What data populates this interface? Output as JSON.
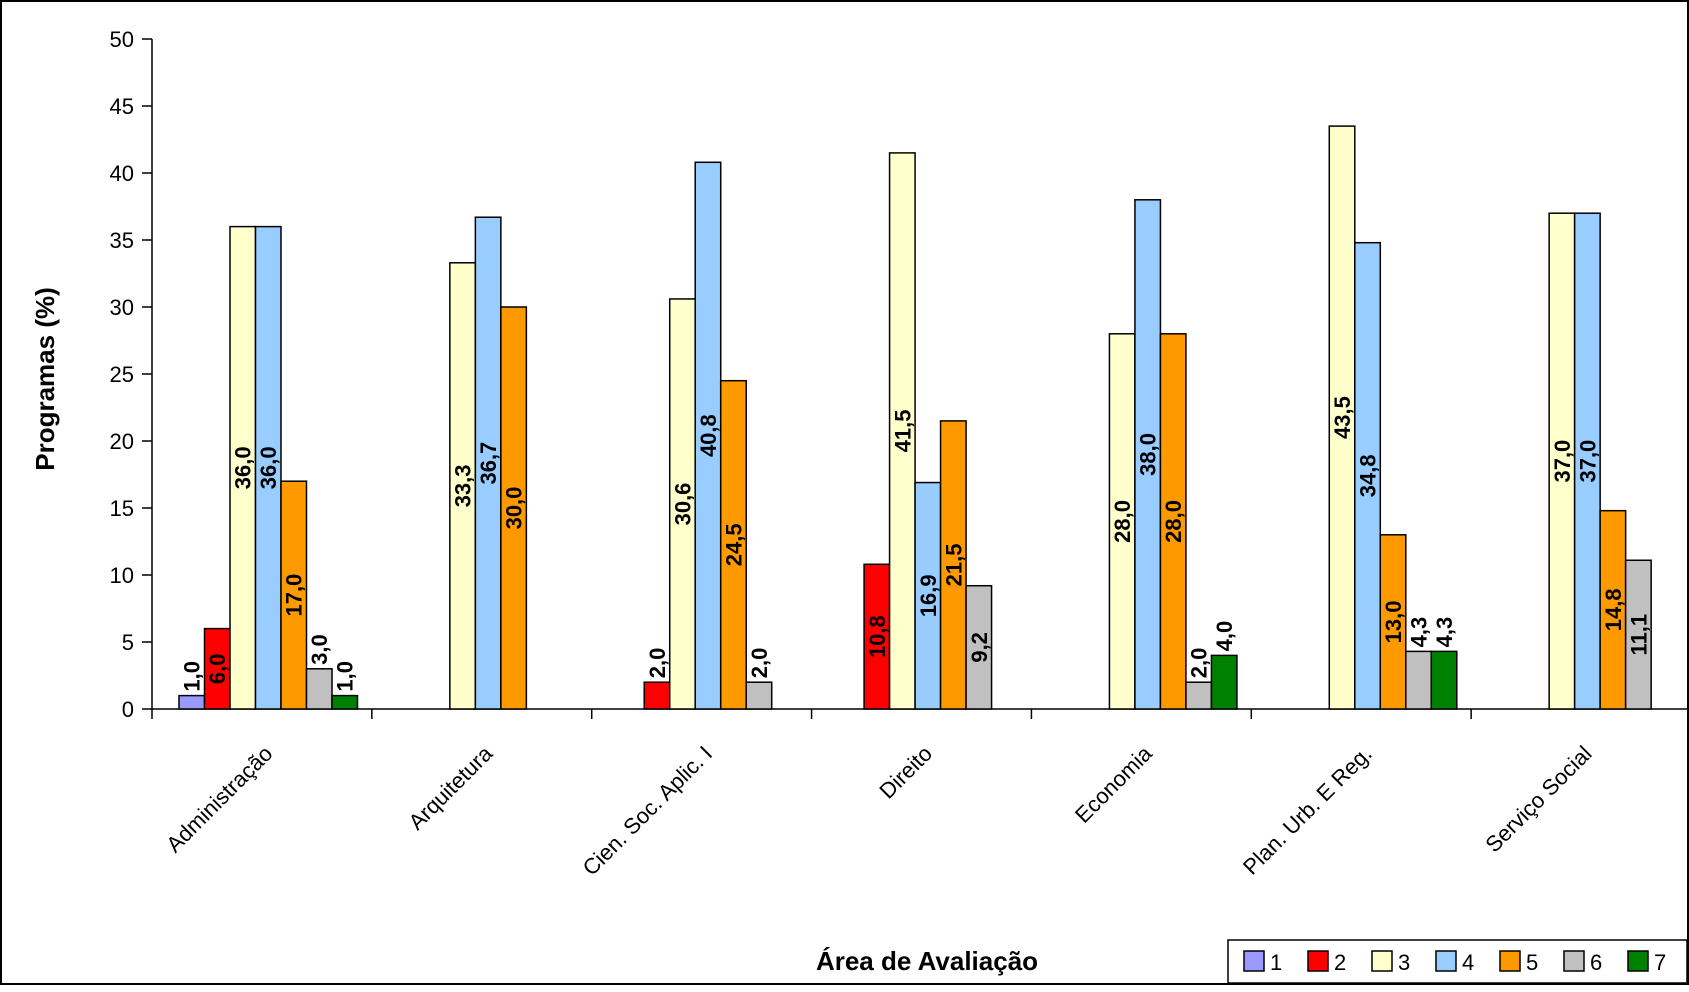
{
  "chart_data": {
    "type": "bar",
    "title": "",
    "xlabel": "Área de Avaliação",
    "ylabel": "Programas (%)",
    "ylim": [
      0,
      50
    ],
    "yticks": [
      0,
      5,
      10,
      15,
      20,
      25,
      30,
      35,
      40,
      45,
      50
    ],
    "grid": false,
    "legend_position": "bottom-right",
    "categories": [
      "Administração",
      "Arquitetura",
      "Cien. Soc. Aplic. I",
      "Direito",
      "Economia",
      "Plan. Urb. E Reg.",
      "Serviço Social"
    ],
    "series": [
      {
        "name": "1",
        "color": "#9999ff",
        "values": [
          1.0,
          null,
          null,
          null,
          null,
          null,
          null
        ],
        "labels": [
          "1,0",
          "",
          "",
          "",
          "",
          "",
          ""
        ]
      },
      {
        "name": "2",
        "color": "#ff0000",
        "values": [
          6.0,
          null,
          2.0,
          10.8,
          null,
          null,
          null
        ],
        "labels": [
          "6,0",
          "",
          "2,0",
          "10,8",
          "",
          "",
          ""
        ]
      },
      {
        "name": "3",
        "color": "#ffffcc",
        "values": [
          36.0,
          33.3,
          30.6,
          41.5,
          28.0,
          43.5,
          37.0
        ],
        "labels": [
          "36,0",
          "33,3",
          "30,6",
          "41,5",
          "28,0",
          "43,5",
          "37,0"
        ]
      },
      {
        "name": "4",
        "color": "#99ccff",
        "values": [
          36.0,
          36.7,
          40.8,
          16.9,
          38.0,
          34.8,
          37.0
        ],
        "labels": [
          "36,0",
          "36,7",
          "40,8",
          "16,9",
          "38,0",
          "34,8",
          "37,0"
        ]
      },
      {
        "name": "5",
        "color": "#ff9900",
        "values": [
          17.0,
          30.0,
          24.5,
          21.5,
          28.0,
          13.0,
          14.8
        ],
        "labels": [
          "17,0",
          "30,0",
          "24,5",
          "21,5",
          "28,0",
          "13,0",
          "14,8"
        ]
      },
      {
        "name": "6",
        "color": "#c0c0c0",
        "values": [
          3.0,
          null,
          2.0,
          9.2,
          2.0,
          4.3,
          11.1
        ],
        "labels": [
          "3,0",
          "",
          "2,0",
          "9,2",
          "2,0",
          "4,3",
          "11,1"
        ]
      },
      {
        "name": "7",
        "color": "#008000",
        "values": [
          1.0,
          null,
          null,
          null,
          4.0,
          4.3,
          null
        ],
        "labels": [
          "1,0",
          "",
          "",
          "",
          "4,0",
          "4,3",
          ""
        ]
      }
    ]
  }
}
